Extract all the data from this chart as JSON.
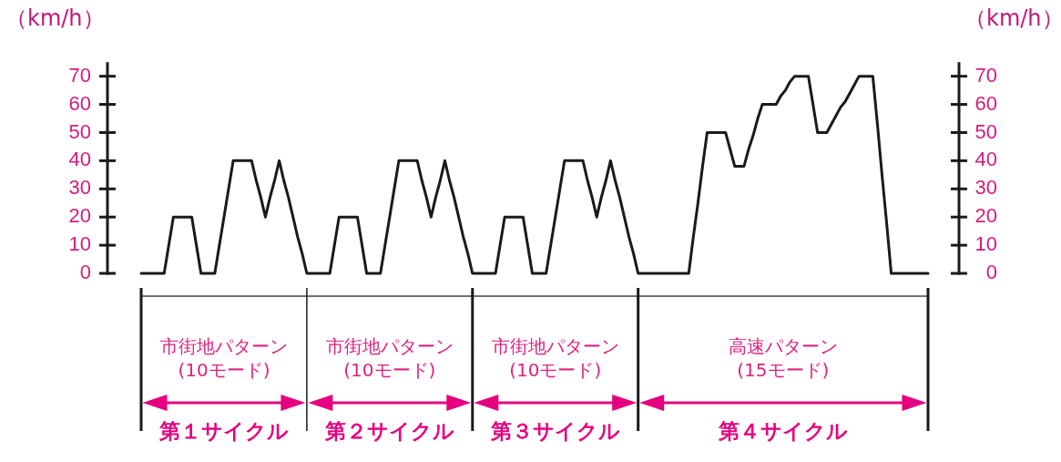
{
  "chart_data": {
    "type": "line",
    "ylabel": "（km/h）",
    "y2label": "（km/h）",
    "annotations": [
      "市街地パターン\n(10モード)",
      "市街地パターン\n(10モード)",
      "市街地パターン\n(10モード)",
      "高速パターン\n(15モード)",
      "第１サイクル",
      "第２サイクル",
      "第３サイクル",
      "第４サイクル"
    ],
    "categories": [
      null,
      null,
      null,
      null,
      null,
      null,
      null,
      null,
      null,
      null,
      null,
      null,
      null,
      null,
      null,
      null,
      null,
      null,
      null,
      null,
      null,
      null,
      null,
      null,
      null,
      null,
      null,
      null,
      null,
      null,
      null,
      null,
      null,
      null,
      null,
      null,
      null,
      null,
      null,
      null,
      null,
      null,
      null,
      null,
      null,
      null,
      null,
      null,
      null,
      null,
      null,
      null,
      null,
      null,
      null,
      null,
      null,
      null,
      null,
      null,
      null,
      null,
      null,
      null,
      null,
      null,
      null,
      null,
      null,
      null,
      null,
      null,
      null,
      null,
      null,
      null,
      null,
      null,
      null,
      null,
      null,
      null,
      null,
      null,
      null,
      null,
      null,
      null,
      null,
      null,
      null,
      null,
      null,
      null,
      null,
      null,
      null,
      null,
      null,
      null,
      null,
      null,
      null,
      null,
      null,
      null,
      null,
      null,
      null,
      null,
      null,
      null,
      null,
      null,
      null,
      null,
      null,
      null,
      null,
      null,
      null,
      null,
      null,
      null,
      null,
      null,
      null,
      null,
      null,
      null,
      null,
      null,
      null,
      null,
      null,
      null,
      null,
      null,
      null,
      null,
      null,
      null,
      null,
      null,
      null,
      null,
      null,
      null,
      null,
      null,
      null,
      null,
      null,
      null,
      null,
      null,
      null,
      null,
      null,
      null,
      null,
      null,
      null,
      null,
      null,
      null,
      null,
      null,
      null,
      null,
      null,
      null
    ],
    "values": [
      0,
      0,
      0,
      0,
      0,
      0,
      10,
      20,
      20,
      20,
      20,
      20,
      10,
      0,
      0,
      0,
      0,
      10,
      20,
      30,
      40,
      40,
      40,
      40,
      40,
      33,
      27,
      20,
      27,
      33,
      40,
      33,
      27,
      20,
      13,
      7,
      0,
      0,
      0,
      0,
      0,
      0,
      10,
      20,
      20,
      20,
      20,
      20,
      10,
      0,
      0,
      0,
      0,
      10,
      20,
      30,
      40,
      40,
      40,
      40,
      40,
      33,
      27,
      20,
      27,
      33,
      40,
      33,
      27,
      20,
      13,
      7,
      0,
      0,
      0,
      0,
      0,
      0,
      10,
      20,
      20,
      20,
      20,
      20,
      10,
      0,
      0,
      0,
      0,
      10,
      20,
      30,
      40,
      40,
      40,
      40,
      40,
      33,
      27,
      20,
      27,
      33,
      40,
      33,
      27,
      20,
      13,
      7,
      0,
      0,
      0,
      0,
      0,
      0,
      0,
      0,
      0,
      0,
      0,
      0,
      13,
      25,
      38,
      50,
      50,
      50,
      50,
      50,
      44,
      38,
      38,
      38,
      44,
      49,
      55,
      60,
      60,
      60,
      60,
      63,
      65,
      68,
      70,
      70,
      70,
      70,
      60,
      50,
      50,
      50,
      53,
      56,
      59,
      61,
      64,
      67,
      70,
      70,
      70,
      70,
      53,
      35,
      18,
      0,
      0,
      0,
      0,
      0,
      0,
      0,
      0,
      0
    ],
    "color": "#1a1a1a",
    "marker": "none",
    "tick_labels": "y",
    "ylim": [
      0,
      75
    ],
    "yticks": [
      0,
      10,
      20,
      30,
      40,
      50,
      60,
      70
    ],
    "y2lim": [
      0,
      75
    ],
    "y2ticks": [
      0,
      10,
      20,
      30,
      40,
      50,
      60,
      70
    ]
  }
}
